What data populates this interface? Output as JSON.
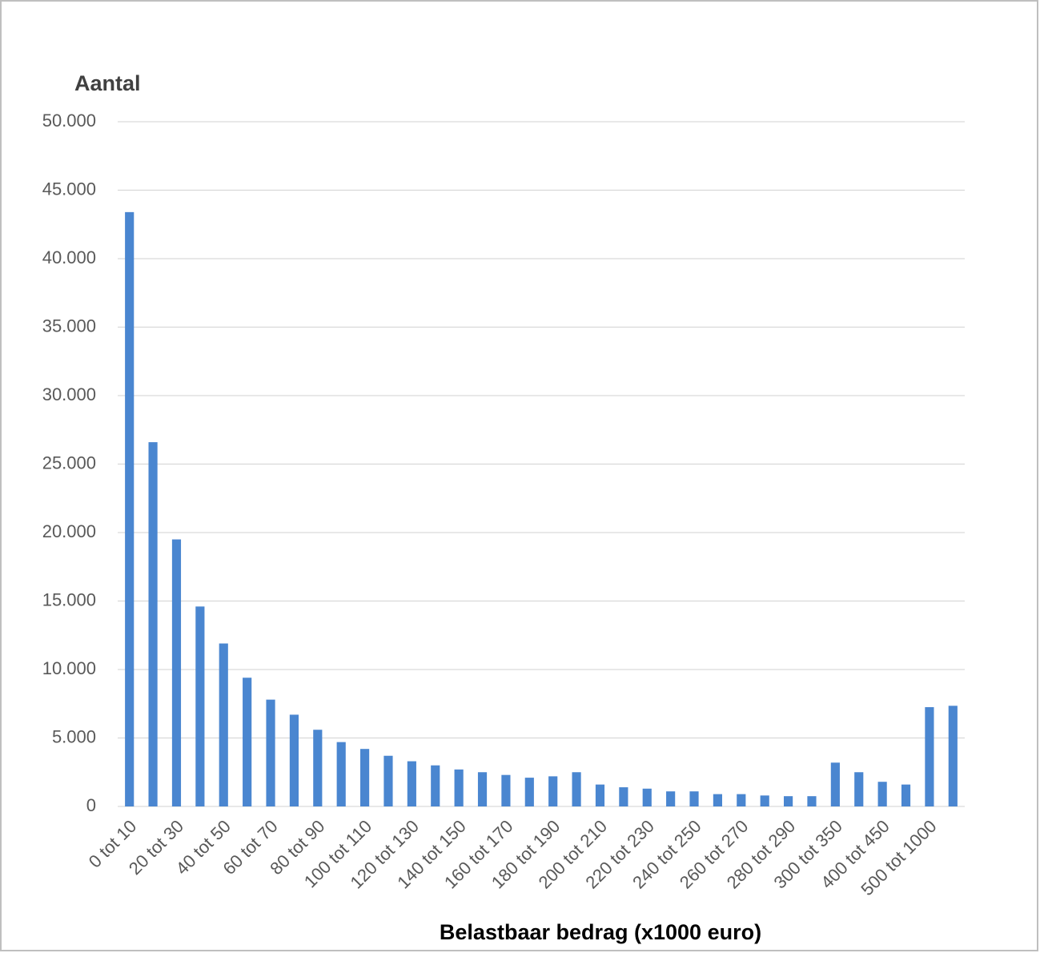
{
  "chart_data": {
    "type": "bar",
    "y_label": "Aantal",
    "x_label": "Belastbaar bedrag (x1000 euro)",
    "categories": [
      "0 tot 10",
      null,
      "20 tot 30",
      null,
      "40 tot 50",
      null,
      "60 tot 70",
      null,
      "80 tot 90",
      null,
      "100 tot 110",
      null,
      "120 tot 130",
      null,
      "140 tot 150",
      null,
      "160 tot 170",
      null,
      "180 tot 190",
      null,
      "200 tot 210",
      null,
      "220 tot 230",
      null,
      "240 tot 250",
      null,
      "260 tot 270",
      null,
      "280 tot 290",
      null,
      "300 tot 350",
      null,
      "400 tot 450",
      null,
      "500 tot 1000",
      null
    ],
    "values": [
      43400,
      26600,
      19500,
      14600,
      11900,
      9400,
      7800,
      6700,
      5600,
      4700,
      4200,
      3700,
      3300,
      3000,
      2700,
      2500,
      2300,
      2100,
      2200,
      2500,
      1600,
      1400,
      1300,
      1100,
      1100,
      900,
      900,
      800,
      750,
      750,
      3200,
      2500,
      1800,
      1600,
      7250,
      7350
    ],
    "color": "#4a86d0",
    "ylim": [
      0,
      50000
    ],
    "yticks": [
      0,
      {
        "value": 5000,
        "label": "5.000"
      },
      {
        "value": 10000,
        "label": "10.000"
      },
      {
        "value": 15000,
        "label": "15.000"
      },
      {
        "value": 20000,
        "label": "20.000"
      },
      {
        "value": 25000,
        "label": "25.000"
      },
      {
        "value": 30000,
        "label": "30.000"
      },
      {
        "value": 35000,
        "label": "35.000"
      },
      {
        "value": 40000,
        "label": "40.000"
      },
      {
        "value": 45000,
        "label": "45.000"
      },
      {
        "value": 50000,
        "label": "50.000"
      }
    ],
    "grid": true
  }
}
